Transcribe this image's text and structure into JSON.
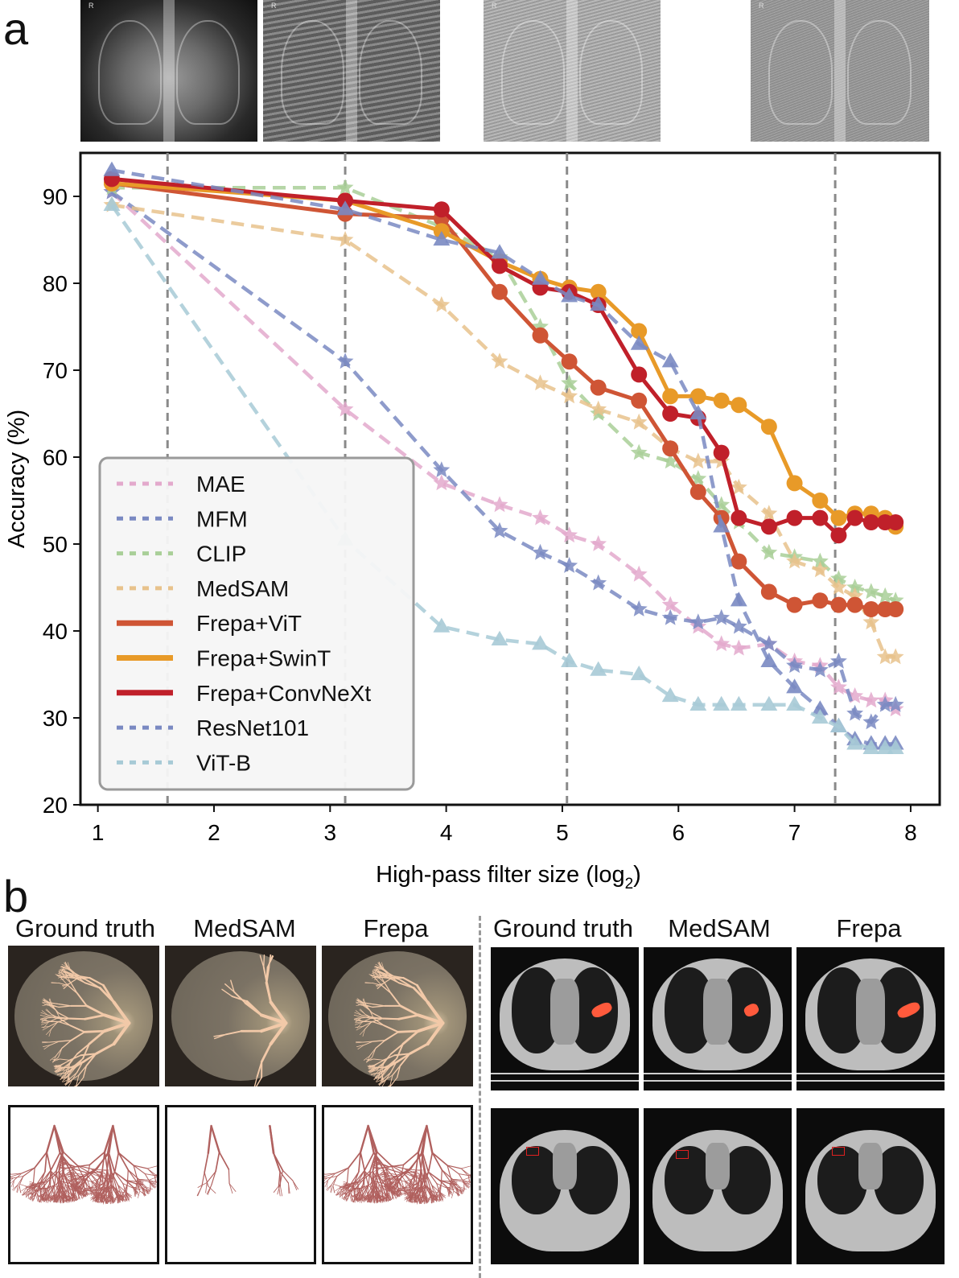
{
  "panel_a_label": "a",
  "panel_b_label": "b",
  "thumbnails": [
    {
      "name": "xray-original",
      "marker": "R"
    },
    {
      "name": "xray-filter-small",
      "marker": "R"
    },
    {
      "name": "xray-filter-medium",
      "marker": "R"
    },
    {
      "name": "xray-filter-large",
      "marker": "R"
    }
  ],
  "chart_data": {
    "type": "line",
    "xlabel": "High-pass filter size (log",
    "xlabel_sub": "2",
    "xlabel_tail": ")",
    "ylabel": "Accuracy (%)",
    "xlim": [
      0.85,
      8.25
    ],
    "ylim": [
      20,
      95
    ],
    "xticks": [
      1,
      2,
      3,
      4,
      5,
      6,
      7,
      8
    ],
    "yticks": [
      20,
      30,
      40,
      50,
      60,
      70,
      80,
      90
    ],
    "vlines": [
      1.6,
      3.13,
      5.04,
      7.35
    ],
    "legend_location": "lower-left",
    "series": [
      {
        "name": "MAE",
        "color": "#e3a9cc",
        "style": "dashed",
        "marker": "star",
        "x": [
          1.12,
          3.13,
          3.96,
          4.46,
          4.81,
          5.06,
          5.31,
          5.66,
          5.93,
          6.17,
          6.37,
          6.52,
          6.78,
          7.0,
          7.22,
          7.38,
          7.52,
          7.66,
          7.78,
          7.87
        ],
        "y": [
          90.5,
          65.5,
          57.0,
          54.5,
          53.0,
          51.0,
          50.0,
          46.5,
          43.0,
          40.5,
          38.5,
          38.0,
          38.5,
          36.5,
          36.0,
          33.5,
          32.5,
          32.0,
          32.0,
          31.0
        ]
      },
      {
        "name": "MFM",
        "color": "#7a89c2",
        "style": "dashed",
        "marker": "star",
        "x": [
          1.12,
          3.13,
          3.96,
          4.46,
          4.81,
          5.06,
          5.31,
          5.66,
          5.93,
          6.17,
          6.37,
          6.52,
          6.78,
          7.0,
          7.22,
          7.38,
          7.52,
          7.66,
          7.78,
          7.87
        ],
        "y": [
          90.5,
          71.0,
          58.5,
          51.5,
          49.0,
          47.5,
          45.5,
          42.5,
          41.5,
          41.0,
          41.5,
          40.5,
          38.5,
          36.0,
          35.5,
          36.5,
          30.5,
          29.5,
          31.5,
          31.5
        ]
      },
      {
        "name": "CLIP",
        "color": "#a9cf98",
        "style": "dashed",
        "marker": "star",
        "x": [
          1.12,
          3.13,
          3.96,
          4.46,
          4.81,
          5.06,
          5.31,
          5.66,
          5.93,
          6.17,
          6.37,
          6.52,
          6.78,
          7.0,
          7.22,
          7.38,
          7.52,
          7.66,
          7.78,
          7.87
        ],
        "y": [
          91.0,
          91.0,
          86.5,
          83.0,
          75.0,
          68.5,
          65.0,
          60.5,
          59.5,
          57.5,
          54.5,
          52.5,
          49.0,
          48.5,
          48.0,
          46.0,
          45.0,
          44.5,
          44.0,
          43.5
        ]
      },
      {
        "name": "MedSAM",
        "color": "#e8c28c",
        "style": "dashed",
        "marker": "star",
        "x": [
          1.12,
          3.13,
          3.96,
          4.46,
          4.81,
          5.06,
          5.31,
          5.66,
          5.93,
          6.17,
          6.37,
          6.52,
          6.78,
          7.0,
          7.22,
          7.38,
          7.52,
          7.66,
          7.78,
          7.87
        ],
        "y": [
          89.0,
          85.0,
          77.5,
          71.0,
          68.5,
          67.0,
          65.5,
          64.0,
          61.0,
          59.5,
          59.5,
          56.5,
          53.5,
          48.0,
          47.0,
          45.0,
          44.0,
          41.0,
          37.0,
          37.0
        ]
      },
      {
        "name": "Frepa+ViT",
        "color": "#cf5535",
        "style": "solid",
        "marker": "circle",
        "x": [
          1.12,
          3.13,
          3.96,
          4.46,
          4.81,
          5.06,
          5.31,
          5.66,
          5.93,
          6.17,
          6.37,
          6.52,
          6.78,
          7.0,
          7.22,
          7.38,
          7.52,
          7.66,
          7.78,
          7.87
        ],
        "y": [
          91.5,
          88.0,
          87.5,
          79.0,
          74.0,
          71.0,
          68.0,
          66.5,
          61.0,
          56.0,
          53.0,
          48.0,
          44.5,
          43.0,
          43.5,
          43.0,
          43.0,
          42.5,
          42.5,
          42.5
        ]
      },
      {
        "name": "Frepa+SwinT",
        "color": "#e89a28",
        "style": "solid",
        "marker": "circle",
        "x": [
          1.12,
          3.13,
          3.96,
          4.46,
          4.81,
          5.06,
          5.31,
          5.66,
          5.93,
          6.17,
          6.37,
          6.52,
          6.78,
          7.0,
          7.22,
          7.38,
          7.52,
          7.66,
          7.78,
          7.87
        ],
        "y": [
          91.5,
          89.5,
          86.0,
          82.5,
          80.5,
          79.5,
          79.0,
          74.5,
          67.0,
          67.0,
          66.5,
          66.0,
          63.5,
          57.0,
          55.0,
          53.0,
          53.5,
          53.5,
          53.0,
          52.0
        ]
      },
      {
        "name": "Frepa+ConvNeXt",
        "color": "#c0202a",
        "style": "solid",
        "marker": "circle",
        "x": [
          1.12,
          3.13,
          3.96,
          4.46,
          4.81,
          5.06,
          5.31,
          5.66,
          5.93,
          6.17,
          6.37,
          6.52,
          6.78,
          7.0,
          7.22,
          7.38,
          7.52,
          7.66,
          7.78,
          7.87
        ],
        "y": [
          92.0,
          89.5,
          88.5,
          82.0,
          79.5,
          79.0,
          77.5,
          69.5,
          65.0,
          64.5,
          60.5,
          53.0,
          52.0,
          53.0,
          53.0,
          51.0,
          53.0,
          52.5,
          52.5,
          52.5
        ]
      },
      {
        "name": "ResNet101",
        "color": "#7a89c2",
        "style": "dashed",
        "marker": "triangle",
        "x": [
          1.12,
          3.13,
          3.96,
          4.46,
          4.81,
          5.06,
          5.31,
          5.66,
          5.93,
          6.17,
          6.37,
          6.52,
          6.78,
          7.0,
          7.22,
          7.38,
          7.52,
          7.66,
          7.78,
          7.87
        ],
        "y": [
          93.0,
          88.5,
          85.0,
          83.5,
          80.5,
          78.5,
          77.5,
          73.0,
          71.0,
          65.0,
          52.0,
          43.5,
          36.5,
          33.5,
          31.0,
          29.0,
          27.5,
          27.0,
          27.0,
          27.0
        ]
      },
      {
        "name": "ViT-B",
        "color": "#a7cad6",
        "style": "dashed",
        "marker": "triangle",
        "x": [
          1.12,
          3.13,
          3.96,
          4.46,
          4.81,
          5.06,
          5.31,
          5.66,
          5.93,
          6.17,
          6.37,
          6.52,
          6.78,
          7.0,
          7.22,
          7.38,
          7.52,
          7.66,
          7.78,
          7.87
        ],
        "y": [
          89.0,
          50.5,
          40.5,
          39.0,
          38.5,
          36.5,
          35.5,
          35.0,
          32.5,
          31.5,
          31.5,
          31.5,
          31.5,
          31.5,
          30.0,
          29.0,
          27.0,
          26.5,
          26.5,
          26.5
        ]
      }
    ]
  },
  "panel_b": {
    "left_columns": [
      "Ground truth",
      "MedSAM",
      "Frepa"
    ],
    "right_columns": [
      "Ground truth",
      "MedSAM",
      "Frepa"
    ]
  }
}
